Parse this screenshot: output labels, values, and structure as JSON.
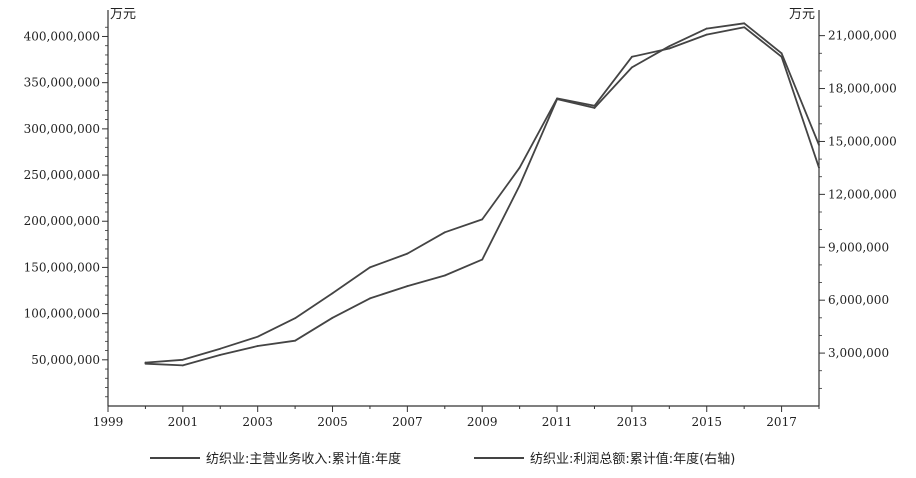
{
  "chart_data": {
    "type": "line",
    "title": "",
    "x": [
      2000,
      2001,
      2002,
      2003,
      2004,
      2005,
      2006,
      2007,
      2008,
      2009,
      2010,
      2011,
      2012,
      2013,
      2014,
      2015,
      2016,
      2017,
      2018
    ],
    "xlim": [
      1999,
      2018
    ],
    "x_ticks": [
      "1999",
      "2001",
      "2003",
      "2005",
      "2007",
      "2009",
      "2011",
      "2013",
      "2015",
      "2017"
    ],
    "y_left": {
      "unit": "万元",
      "ylim": [
        0,
        420000000
      ],
      "ticks": [
        50000000,
        100000000,
        150000000,
        200000000,
        250000000,
        300000000,
        350000000,
        400000000
      ],
      "tick_labels": [
        "50,000,000",
        "100,000,000",
        "150,000,000",
        "200,000,000",
        "250,000,000",
        "300,000,000",
        "350,000,000",
        "400,000,000"
      ]
    },
    "y_right": {
      "unit": "万元",
      "ylim": [
        0,
        22000000
      ],
      "ticks": [
        3000000,
        6000000,
        9000000,
        12000000,
        15000000,
        18000000,
        21000000
      ],
      "tick_labels": [
        "3,000,000",
        "6,000,000",
        "9,000,000",
        "12,000,000",
        "15,000,000",
        "18,000,000",
        "21,000,000"
      ]
    },
    "series": [
      {
        "name": "纺织业:主营业务收入:累计值:年度",
        "axis": "left",
        "values": [
          47000000,
          50000000,
          62000000,
          75000000,
          95000000,
          122000000,
          150000000,
          165000000,
          188000000,
          202000000,
          258000000,
          333000000,
          325000000,
          378000000,
          387000000,
          402000000,
          410000000,
          378000000,
          258000000
        ]
      },
      {
        "name": "纺织业:利润总额:累计值:年度(右轴)",
        "axis": "right",
        "values": [
          2400000,
          2300000,
          2900000,
          3400000,
          3700000,
          5000000,
          6100000,
          6800000,
          7400000,
          8300000,
          12500000,
          17400000,
          16900000,
          19200000,
          20400000,
          21400000,
          21700000,
          20000000,
          14800000
        ]
      }
    ],
    "grid": false,
    "legend_position": "bottom",
    "line_color": "#444444"
  }
}
